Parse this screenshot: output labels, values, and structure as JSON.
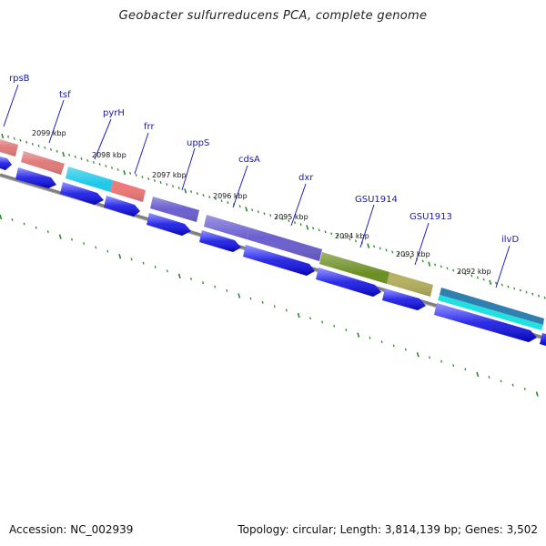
{
  "title": "Geobacter sulfurreducens PCA, complete genome",
  "footer": {
    "accession": "Accession: NC_002939",
    "summary": "Topology: circular; Length: 3,814,139 bp; Genes: 3,502"
  },
  "colors": {
    "backbone": "#808080",
    "cds_arrow": "#1010e8",
    "tick": "#2a8a2a",
    "label": "#1a1aa8",
    "label_line": "#2020c0"
  },
  "gene_labels": [
    "rpsB",
    "tsf",
    "pyrH",
    "frr",
    "uppS",
    "cdsA",
    "dxr",
    "GSU1914",
    "GSU1913",
    "ilvD"
  ],
  "kbp_labels": [
    "2099 kbp",
    "2098 kbp",
    "2097 kbp",
    "2096 kbp",
    "2095 kbp",
    "2094 kbp",
    "2093 kbp",
    "2092 kbp"
  ],
  "feature_colors": [
    "#e07a7a",
    "#e07a7a",
    "#1ec8e8",
    "#e87878",
    "#6a5fcf",
    "#6a5fcf",
    "#6a5fcf",
    "#6b8e23",
    "#b5b060",
    "#2f7fb0"
  ]
}
